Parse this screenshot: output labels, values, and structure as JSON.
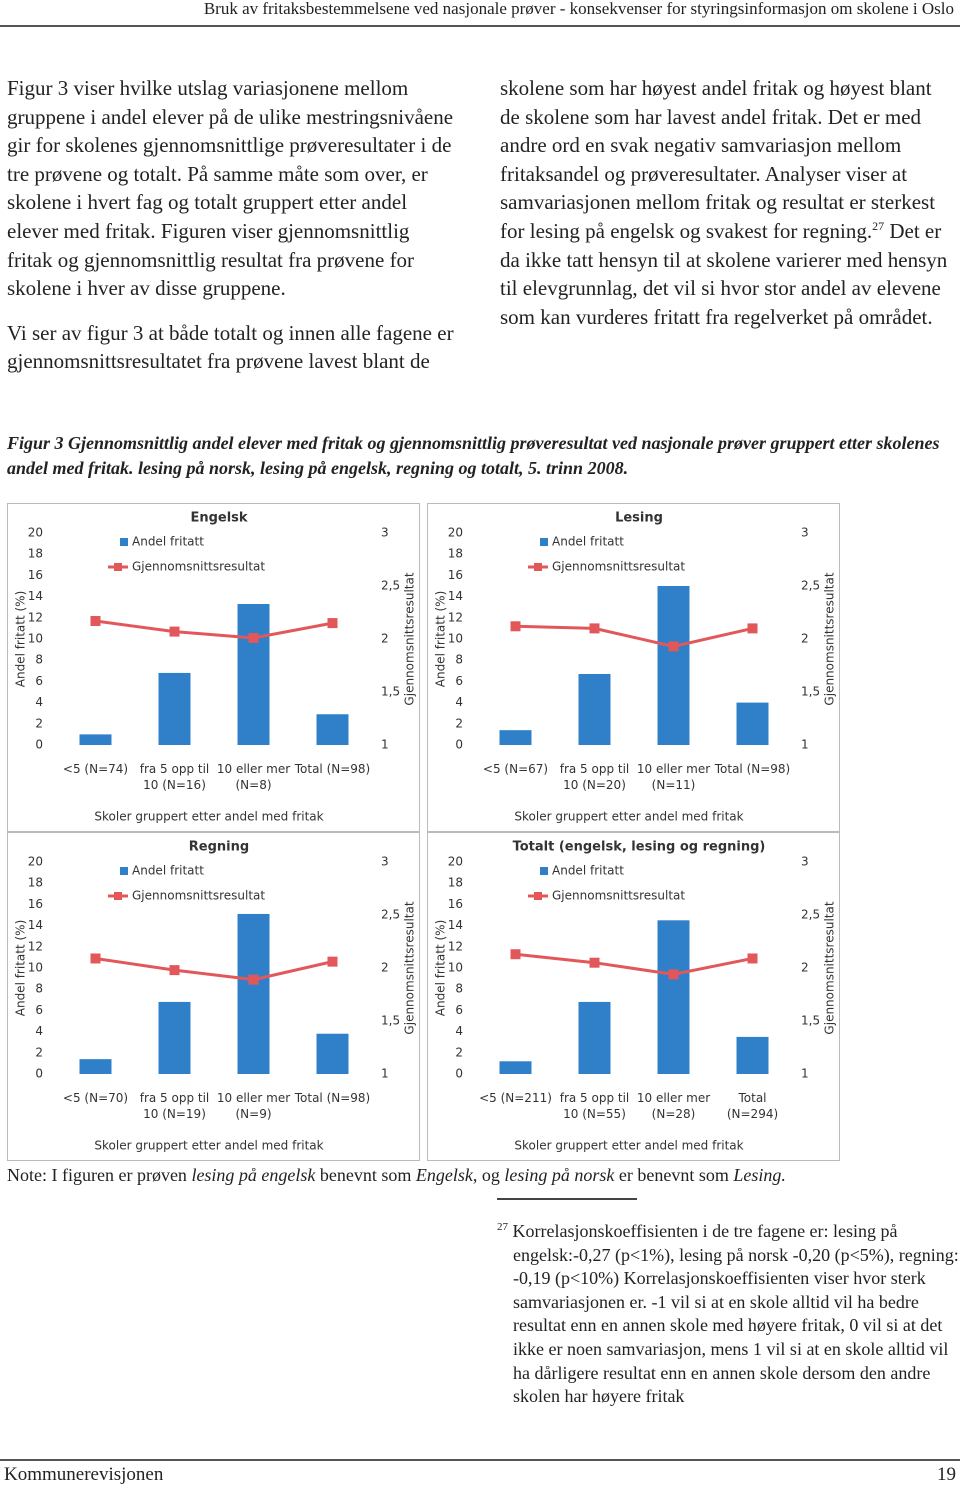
{
  "header": {
    "title": "Bruk av fritaksbestemmelsene ved nasjonale prøver - konsekvenser for styringsinformasjon om skolene i Oslo"
  },
  "body": {
    "paragraph1": "Figur 3 viser hvilke utslag variasjonene mellom gruppene i andel elever på de ulike mestringsnivåene gir for skolenes gjennomsnittlige prøveresultater i de tre prøvene og totalt. På samme måte som over, er skolene i hvert fag og totalt gruppert etter andel elever med fritak. Figuren viser gjennomsnittlig fritak og gjennomsnittlig resultat fra prøvene for skolene i hver av disse gruppene.",
    "paragraph2": {
      "before": "Vi ser av figur 3 at både totalt og innen alle fagene er gjennomsnittsresultatet fra prøvene lavest blant de skolene som har høyest andel fritak og høyest blant de skolene som har lavest andel fritak. Det er med andre ord en svak negativ samvariasjon mellom fritaksandel og prøveresultater. Analyser viser at samvariasjonen mellom fritak og resultat er sterkest for lesing på engelsk og svakest for regning.",
      "footnote_ref": "27",
      "after": " Det er da ikke tatt hensyn til at skolene varierer med hensyn til elevgrunnlag, det vil si hvor stor andel av elevene som kan vurderes fritatt fra regelverket på området."
    }
  },
  "figure": {
    "caption": "Figur 3 Gjennomsnittlig andel elever med fritak og gjennomsnittlig prøveresultat ved nasjonale prøver gruppert etter skolenes andel med fritak. lesing på norsk, lesing på engelsk, regning og totalt, 5. trinn 2008."
  },
  "chart_data": [
    {
      "type": "bar_line",
      "title": "Engelsk",
      "x_label": "Skoler gruppert etter andel med fritak",
      "y_label": "Andel fritatt (%)",
      "y2_label": "Gjennomsnittsresultat",
      "categories": [
        "<5 (N=74)",
        "fra 5 opp til 10 (N=16)",
        "10 eller mer (N=8)",
        "Total (N=98)"
      ],
      "series": [
        {
          "name": "Andel fritatt",
          "color": "#2f80c8",
          "values": [
            1.0,
            6.8,
            13.3,
            2.9
          ]
        },
        {
          "name": "Gjennomsnittsresultat",
          "color": "#e2585a",
          "axis": "y2",
          "values": [
            2.17,
            2.07,
            2.01,
            2.15
          ]
        }
      ],
      "ylim": [
        0,
        20
      ],
      "yticks": [
        0,
        2,
        4,
        6,
        8,
        10,
        12,
        14,
        16,
        18,
        20
      ],
      "y2lim": [
        1,
        3
      ],
      "y2ticks": [
        1,
        {
          "value": 1.5,
          "label": "1,5"
        },
        2,
        {
          "value": 2.5,
          "label": "2,5"
        },
        3
      ],
      "legend": "top-left"
    },
    {
      "type": "bar_line",
      "title": "Lesing",
      "x_label": "Skoler gruppert etter andel med fritak",
      "y_label": "Andel fritatt (%)",
      "y2_label": "Gjennomsnittsresultat",
      "categories": [
        "<5 (N=67)",
        "fra 5 opp til 10 (N=20)",
        "10 eller mer (N=11)",
        "Total (N=98)"
      ],
      "series": [
        {
          "name": "Andel fritatt",
          "color": "#2f80c8",
          "values": [
            1.4,
            6.7,
            15.0,
            4.0
          ]
        },
        {
          "name": "Gjennomsnittsresultat",
          "color": "#e2585a",
          "axis": "y2",
          "values": [
            2.12,
            2.1,
            1.93,
            2.1
          ]
        }
      ],
      "ylim": [
        0,
        20
      ],
      "yticks": [
        0,
        2,
        4,
        6,
        8,
        10,
        12,
        14,
        16,
        18,
        20
      ],
      "y2lim": [
        1,
        3
      ],
      "y2ticks": [
        1,
        {
          "value": 1.5,
          "label": "1,5"
        },
        2,
        {
          "value": 2.5,
          "label": "2,5"
        },
        3
      ],
      "legend": "top-left"
    },
    {
      "type": "bar_line",
      "title": "Regning",
      "x_label": "Skoler gruppert etter andel med fritak",
      "y_label": "Andel fritatt (%)",
      "y2_label": "Gjennomsnittsresultat",
      "categories": [
        "<5 (N=70)",
        "fra 5 opp til 10 (N=19)",
        "10 eller mer (N=9)",
        "Total (N=98)"
      ],
      "series": [
        {
          "name": "Andel fritatt",
          "color": "#2f80c8",
          "values": [
            1.4,
            6.8,
            15.1,
            3.8
          ]
        },
        {
          "name": "Gjennomsnittsresultat",
          "color": "#e2585a",
          "axis": "y2",
          "values": [
            2.09,
            1.98,
            1.89,
            2.06
          ]
        }
      ],
      "ylim": [
        0,
        20
      ],
      "yticks": [
        0,
        2,
        4,
        6,
        8,
        10,
        12,
        14,
        16,
        18,
        20
      ],
      "y2lim": [
        1,
        3
      ],
      "y2ticks": [
        1,
        {
          "value": 1.5,
          "label": "1,5"
        },
        2,
        {
          "value": 2.5,
          "label": "2,5"
        },
        3
      ],
      "legend": "top-left"
    },
    {
      "type": "bar_line",
      "title": "Totalt (engelsk, lesing og regning)",
      "x_label": "Skoler gruppert etter andel med fritak",
      "y_label": "Andel fritatt (%)",
      "y2_label": "Gjennomsnittsresultat",
      "categories": [
        "<5 (N=211)",
        "fra 5 opp til 10 (N=55)",
        "10 eller mer (N=28)",
        "Total (N=294)"
      ],
      "series": [
        {
          "name": "Andel fritatt",
          "color": "#2f80c8",
          "values": [
            1.2,
            6.8,
            14.5,
            3.5
          ]
        },
        {
          "name": "Gjennomsnittsresultat",
          "color": "#e2585a",
          "axis": "y2",
          "values": [
            2.13,
            2.05,
            1.94,
            2.09
          ]
        }
      ],
      "ylim": [
        0,
        20
      ],
      "yticks": [
        0,
        2,
        4,
        6,
        8,
        10,
        12,
        14,
        16,
        18,
        20
      ],
      "y2lim": [
        1,
        3
      ],
      "y2ticks": [
        1,
        {
          "value": 1.5,
          "label": "1,5"
        },
        2,
        {
          "value": 2.5,
          "label": "2,5"
        },
        3
      ],
      "legend": "top-left"
    }
  ],
  "note": {
    "segments": [
      {
        "text": "Note: I figuren er prøven ",
        "italic": false
      },
      {
        "text": "lesing på engelsk",
        "italic": true
      },
      {
        "text": " benevnt som ",
        "italic": false
      },
      {
        "text": "Engelsk",
        "italic": true
      },
      {
        "text": ", og ",
        "italic": false
      },
      {
        "text": "lesing på norsk",
        "italic": true
      },
      {
        "text": " er benevnt som ",
        "italic": false
      },
      {
        "text": "Lesing.",
        "italic": true
      }
    ]
  },
  "footnote": {
    "number": "27",
    "text": "Korrelasjonskoeffisienten i de tre fagene er: lesing på engelsk:-0,27 (p<1%), lesing på norsk -0,20 (p<5%), regning: -0,19 (p<10%) Korrelasjonskoeffisienten viser hvor sterk samvariasjonen er. -1 vil si at en skole alltid vil ha bedre resultat enn en annen skole med høyere fritak, 0 vil si at det ikke er noen samvariasjon, mens 1 vil si at en skole alltid vil ha dårligere resultat enn en annen skole dersom den andre skolen har høyere fritak"
  },
  "footer": {
    "left": "Kommunerevisjonen",
    "page": "19"
  }
}
